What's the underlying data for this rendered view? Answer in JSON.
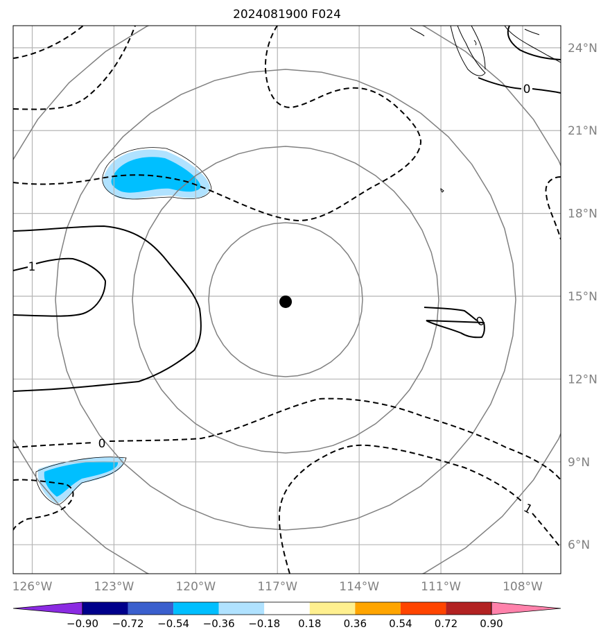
{
  "title": "2024081900 F024",
  "axes": {
    "lon_ticks": [
      {
        "value": -126,
        "label": "126°W"
      },
      {
        "value": -123,
        "label": "123°W"
      },
      {
        "value": -120,
        "label": "120°W"
      },
      {
        "value": -117,
        "label": "117°W"
      },
      {
        "value": -114,
        "label": "114°W"
      },
      {
        "value": -111,
        "label": "111°W"
      },
      {
        "value": -108,
        "label": "108°W"
      }
    ],
    "lat_ticks": [
      {
        "value": 24,
        "label": "24°N"
      },
      {
        "value": 21,
        "label": "21°N"
      },
      {
        "value": 18,
        "label": "18°N"
      },
      {
        "value": 15,
        "label": "15°N"
      },
      {
        "value": 12,
        "label": "12°N"
      },
      {
        "value": 9,
        "label": "9°N"
      },
      {
        "value": 6,
        "label": "6°N"
      }
    ],
    "lon_range": [
      -126.7,
      -106.6
    ],
    "lat_range": [
      4.95,
      24.8
    ],
    "gridlines": true
  },
  "storm_center": {
    "lon": -116.7,
    "lat": 14.8
  },
  "range_rings": {
    "count": 4,
    "color": "#808080"
  },
  "contour_labels": [
    "1",
    "0",
    "0",
    "0",
    "1"
  ],
  "colorbar": {
    "ticks": [
      "−0.90",
      "−0.72",
      "−0.54",
      "−0.36",
      "−0.18",
      "0.18",
      "0.36",
      "0.54",
      "0.72",
      "0.90"
    ],
    "colors": [
      "#8b2be2",
      "#00008b",
      "#3a5fcd",
      "#00bfff",
      "#b0e2ff",
      "#ffffff",
      "#fff08f",
      "#ffa500",
      "#ff4500",
      "#b22222",
      "#ff82ab"
    ],
    "extend": "both"
  },
  "shading_color": "#00bfff",
  "shading_light_color": "#b0e2ff"
}
